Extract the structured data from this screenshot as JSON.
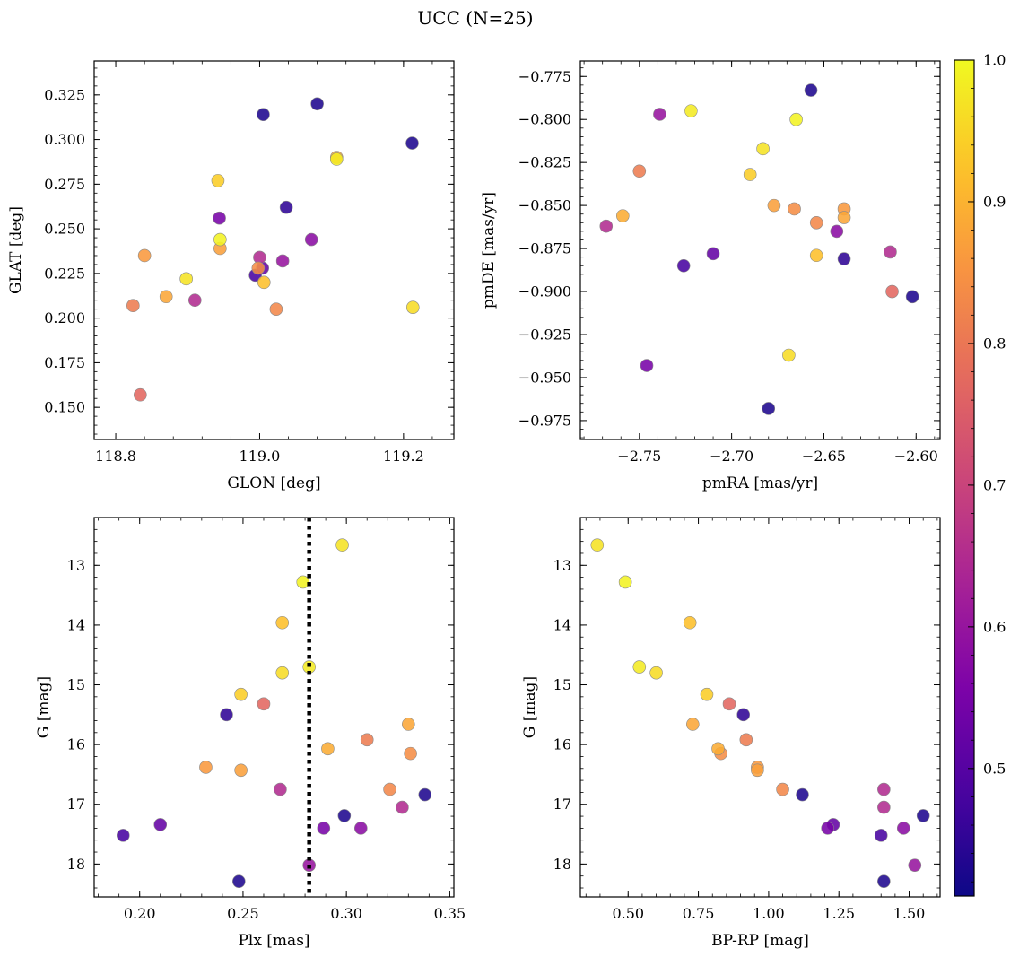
{
  "suptitle": "UCC (N=25)",
  "colorbar": {
    "cmap": "plasma",
    "range": [
      0.41,
      1.0
    ],
    "ticks": [
      0.5,
      0.6,
      0.7,
      0.8,
      0.9,
      1.0
    ],
    "tick_labels": [
      "0.5",
      "0.6",
      "0.7",
      "0.8",
      "0.9",
      "1.0"
    ]
  },
  "stars": [
    {
      "glon": 119.005,
      "glat": 0.314,
      "pmra": -2.657,
      "pmde": -0.783,
      "plx": 0.248,
      "g": 18.29,
      "bprp": 1.41,
      "p": 0.43
    },
    {
      "glon": 119.08,
      "glat": 0.32,
      "pmra": -2.68,
      "pmde": -0.968,
      "plx": 0.299,
      "g": 17.19,
      "bprp": 1.55,
      "p": 0.43
    },
    {
      "glon": 119.212,
      "glat": 0.298,
      "pmra": -2.602,
      "pmde": -0.903,
      "plx": 0.338,
      "g": 16.84,
      "bprp": 1.12,
      "p": 0.43
    },
    {
      "glon": 119.037,
      "glat": 0.262,
      "pmra": -2.639,
      "pmde": -0.881,
      "plx": 0.242,
      "g": 15.5,
      "bprp": 0.91,
      "p": 0.45
    },
    {
      "glon": 118.994,
      "glat": 0.224,
      "pmra": -2.726,
      "pmde": -0.885,
      "plx": 0.192,
      "g": 17.52,
      "bprp": 1.4,
      "p": 0.48
    },
    {
      "glon": 119.004,
      "glat": 0.228,
      "pmra": -2.71,
      "pmde": -0.878,
      "plx": 0.21,
      "g": 17.34,
      "bprp": 1.23,
      "p": 0.52
    },
    {
      "glon": 118.944,
      "glat": 0.256,
      "pmra": -2.746,
      "pmde": -0.943,
      "plx": 0.289,
      "g": 17.4,
      "bprp": 1.21,
      "p": 0.55
    },
    {
      "glon": 119.072,
      "glat": 0.244,
      "pmra": -2.643,
      "pmde": -0.865,
      "plx": 0.307,
      "g": 17.4,
      "bprp": 1.48,
      "p": 0.58
    },
    {
      "glon": 119.032,
      "glat": 0.232,
      "pmra": -2.739,
      "pmde": -0.797,
      "plx": 0.282,
      "g": 18.02,
      "bprp": 1.52,
      "p": 0.6
    },
    {
      "glon": 119.0,
      "glat": 0.234,
      "pmra": -2.768,
      "pmde": -0.862,
      "plx": 0.268,
      "g": 16.75,
      "bprp": 1.41,
      "p": 0.65
    },
    {
      "glon": 118.91,
      "glat": 0.21,
      "pmra": -2.614,
      "pmde": -0.877,
      "plx": 0.327,
      "g": 17.05,
      "bprp": 1.41,
      "p": 0.65
    },
    {
      "glon": 118.834,
      "glat": 0.157,
      "pmra": -2.613,
      "pmde": -0.9,
      "plx": 0.26,
      "g": 15.32,
      "bprp": 0.86,
      "p": 0.77
    },
    {
      "glon": 118.824,
      "glat": 0.207,
      "pmra": -2.75,
      "pmde": -0.83,
      "plx": 0.31,
      "g": 15.92,
      "bprp": 0.92,
      "p": 0.81
    },
    {
      "glon": 119.023,
      "glat": 0.205,
      "pmra": -2.654,
      "pmde": -0.86,
      "plx": 0.321,
      "g": 16.75,
      "bprp": 1.05,
      "p": 0.83
    },
    {
      "glon": 118.998,
      "glat": 0.228,
      "pmra": -2.666,
      "pmde": -0.852,
      "plx": 0.331,
      "g": 16.15,
      "bprp": 0.83,
      "p": 0.84
    },
    {
      "glon": 118.84,
      "glat": 0.235,
      "pmra": -2.639,
      "pmde": -0.852,
      "plx": 0.232,
      "g": 16.38,
      "bprp": 0.96,
      "p": 0.86
    },
    {
      "glon": 118.945,
      "glat": 0.239,
      "pmra": -2.677,
      "pmde": -0.85,
      "plx": 0.249,
      "g": 16.43,
      "bprp": 0.96,
      "p": 0.87
    },
    {
      "glon": 118.87,
      "glat": 0.212,
      "pmra": -2.639,
      "pmde": -0.857,
      "plx": 0.33,
      "g": 15.66,
      "bprp": 0.73,
      "p": 0.88
    },
    {
      "glon": 119.107,
      "glat": 0.29,
      "pmra": -2.759,
      "pmde": -0.856,
      "plx": 0.291,
      "g": 16.07,
      "bprp": 0.82,
      "p": 0.89
    },
    {
      "glon": 119.006,
      "glat": 0.22,
      "pmra": -2.654,
      "pmde": -0.879,
      "plx": 0.269,
      "g": 13.96,
      "bprp": 0.72,
      "p": 0.92
    },
    {
      "glon": 118.942,
      "glat": 0.277,
      "pmra": -2.69,
      "pmde": -0.832,
      "plx": 0.249,
      "g": 15.16,
      "bprp": 0.78,
      "p": 0.94
    },
    {
      "glon": 119.213,
      "glat": 0.206,
      "pmra": -2.669,
      "pmde": -0.937,
      "plx": 0.269,
      "g": 14.8,
      "bprp": 0.6,
      "p": 0.96
    },
    {
      "glon": 118.898,
      "glat": 0.222,
      "pmra": -2.683,
      "pmde": -0.817,
      "plx": 0.298,
      "g": 12.66,
      "bprp": 0.39,
      "p": 0.97
    },
    {
      "glon": 119.107,
      "glat": 0.289,
      "pmra": -2.722,
      "pmde": -0.795,
      "plx": 0.282,
      "g": 14.7,
      "bprp": 0.54,
      "p": 0.98
    },
    {
      "glon": 118.945,
      "glat": 0.244,
      "pmra": -2.665,
      "pmde": -0.8,
      "plx": 0.279,
      "g": 13.28,
      "bprp": 0.49,
      "p": 0.99
    }
  ],
  "chart_data": [
    {
      "type": "scatter",
      "x_field": "glon",
      "y_field": "glat",
      "xlabel": "GLON [deg]",
      "ylabel": "GLAT [deg]",
      "xlim": [
        118.77,
        119.27
      ],
      "ylim": [
        0.132,
        0.344
      ],
      "x_ticks": [
        118.8,
        119.0,
        119.2
      ],
      "x_tick_labels": [
        "118.8",
        "119.0",
        "119.2"
      ],
      "y_ticks": [
        0.15,
        0.175,
        0.2,
        0.225,
        0.25,
        0.275,
        0.3,
        0.325
      ],
      "y_tick_labels": [
        "0.150",
        "0.175",
        "0.200",
        "0.225",
        "0.250",
        "0.275",
        "0.300",
        "0.325"
      ],
      "grid": false
    },
    {
      "type": "scatter",
      "x_field": "pmra",
      "y_field": "pmde",
      "xlabel": "pmRA [mas/yr]",
      "ylabel": "pmDE [mas/yr]",
      "xlim": [
        -2.782,
        -2.587
      ],
      "ylim": [
        -0.986,
        -0.766
      ],
      "x_ticks": [
        -2.75,
        -2.7,
        -2.65,
        -2.6
      ],
      "x_tick_labels": [
        "−2.75",
        "−2.70",
        "−2.65",
        "−2.60"
      ],
      "y_ticks": [
        -0.775,
        -0.8,
        -0.825,
        -0.85,
        -0.875,
        -0.9,
        -0.925,
        -0.95,
        -0.975
      ],
      "y_tick_labels": [
        "−0.775",
        "−0.800",
        "−0.825",
        "−0.850",
        "−0.875",
        "−0.900",
        "−0.925",
        "−0.950",
        "−0.975"
      ],
      "grid": false
    },
    {
      "type": "scatter",
      "x_field": "plx",
      "y_field": "g",
      "xlabel": "Plx [mas]",
      "ylabel": "G [mag]",
      "xlim": [
        0.178,
        0.352
      ],
      "ylim": [
        18.55,
        12.2
      ],
      "y_inverted": true,
      "x_ticks": [
        0.2,
        0.25,
        0.3,
        0.35
      ],
      "x_tick_labels": [
        "0.20",
        "0.25",
        "0.30",
        "0.35"
      ],
      "y_ticks": [
        13,
        14,
        15,
        16,
        17,
        18
      ],
      "y_tick_labels": [
        "13",
        "14",
        "15",
        "16",
        "17",
        "18"
      ],
      "vline": {
        "x": 0.282,
        "style": "dotted"
      },
      "grid": false
    },
    {
      "type": "scatter",
      "x_field": "bprp",
      "y_field": "g",
      "xlabel": "BP-RP [mag]",
      "ylabel": "G [mag]",
      "xlim": [
        0.33,
        1.61
      ],
      "ylim": [
        18.55,
        12.2
      ],
      "y_inverted": true,
      "x_ticks": [
        0.5,
        0.75,
        1.0,
        1.25,
        1.5
      ],
      "x_tick_labels": [
        "0.50",
        "0.75",
        "1.00",
        "1.25",
        "1.50"
      ],
      "y_ticks": [
        13,
        14,
        15,
        16,
        17,
        18
      ],
      "y_tick_labels": [
        "13",
        "14",
        "15",
        "16",
        "17",
        "18"
      ],
      "grid": false
    }
  ]
}
